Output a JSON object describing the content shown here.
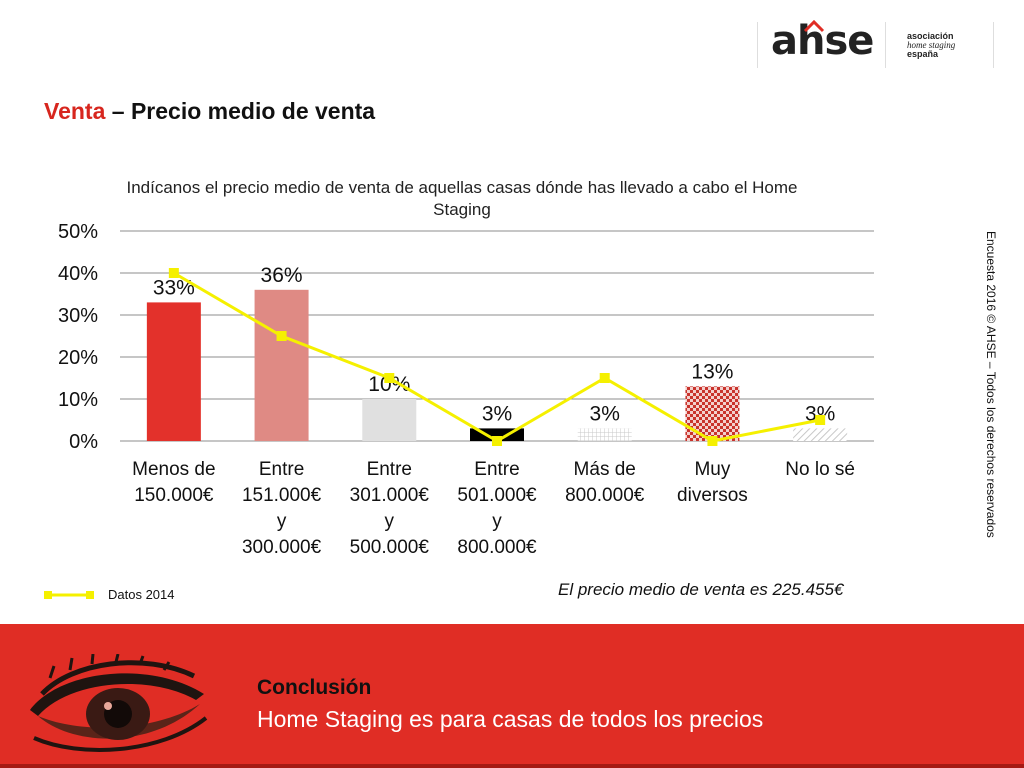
{
  "logo": {
    "mark": "ahse",
    "line1": "asociación",
    "line2": "home staging",
    "line3": "españa"
  },
  "slide_title": {
    "accent": "Venta",
    "rest": " – Precio medio de venta"
  },
  "side_note": "Encuesta 2016 © AHSE – Todos los derechos reservados",
  "price_note": "El precio medio de venta es 225.455€",
  "conclusion": {
    "heading": "Conclusión",
    "text": "Home Staging es para casas de todos los precios"
  },
  "colors": {
    "accent": "#d7261e",
    "footer": "#e02d25",
    "line_2014": "#f5f000"
  },
  "icons": [
    "eye-illustration-icon",
    "house-roof-icon"
  ],
  "chart_data": {
    "type": "bar",
    "title": "Indícanos el precio medio de venta de aquellas casas dónde has llevado a cabo el Home Staging",
    "categories": [
      [
        "Menos de",
        "150.000€"
      ],
      [
        "Entre",
        "151.000€",
        "y",
        "300.000€"
      ],
      [
        "Entre",
        "301.000€",
        "y",
        "500.000€"
      ],
      [
        "Entre",
        "501.000€",
        "y",
        "800.000€"
      ],
      [
        "Más de",
        "800.000€"
      ],
      [
        "Muy",
        "diversos"
      ],
      [
        "No lo sé"
      ]
    ],
    "series": [
      {
        "values": [
          33,
          36,
          10,
          3,
          3,
          13,
          3
        ],
        "labels": [
          "33%",
          "36%",
          "10%",
          "3%",
          "3%",
          "13%",
          "3%"
        ],
        "colors": [
          "#e3312b",
          "#df8a84",
          "#e0e0e0",
          "#000000",
          "#e6e6e6",
          "#c9332c",
          "#d8d8d8"
        ],
        "patterns": [
          "solid",
          "solid",
          "solid",
          "solid",
          "grid",
          "check",
          "hatch"
        ]
      },
      {
        "name": "Datos 2014",
        "type": "line",
        "values": [
          40,
          25,
          15,
          0,
          15,
          0,
          5
        ]
      }
    ],
    "yticks": [
      "0%",
      "10%",
      "20%",
      "30%",
      "40%",
      "50%"
    ],
    "ylim": [
      0,
      50
    ],
    "grid": true,
    "legend": "bottom-left"
  }
}
